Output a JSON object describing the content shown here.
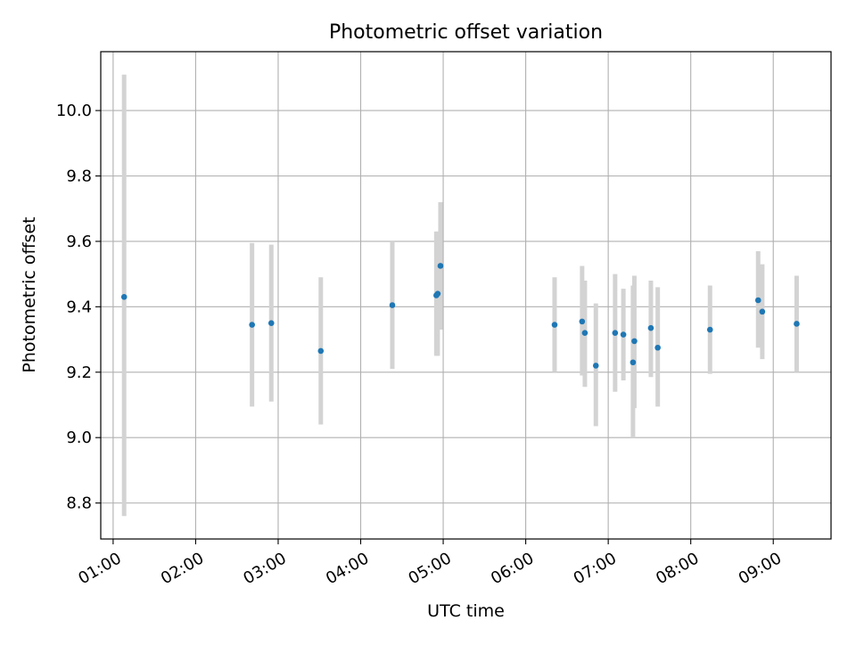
{
  "chart_data": {
    "type": "scatter",
    "title": "Photometric offset variation",
    "xlabel": "UTC time",
    "ylabel": "Photometric offset",
    "x_axis_kind": "time",
    "xlim": [
      "00:51",
      "09:42"
    ],
    "ylim": [
      8.69,
      10.18
    ],
    "x_ticks": [
      "01:00",
      "02:00",
      "03:00",
      "04:00",
      "05:00",
      "06:00",
      "07:00",
      "08:00",
      "09:00"
    ],
    "y_ticks": [
      8.8,
      9.0,
      9.2,
      9.4,
      9.6,
      9.8,
      10.0
    ],
    "grid": true,
    "colors": {
      "point": "#1f77b4",
      "errorbar": "#d3d3d3",
      "grid": "#b0b0b0",
      "axes": "#000000"
    },
    "series": [
      {
        "points": [
          {
            "x": "01:08",
            "y": 9.43,
            "y_low": 8.76,
            "y_high": 10.11
          },
          {
            "x": "02:41",
            "y": 9.345,
            "y_low": 9.095,
            "y_high": 9.595
          },
          {
            "x": "02:55",
            "y": 9.35,
            "y_low": 9.11,
            "y_high": 9.59
          },
          {
            "x": "03:31",
            "y": 9.265,
            "y_low": 9.04,
            "y_high": 9.49
          },
          {
            "x": "04:23",
            "y": 9.405,
            "y_low": 9.21,
            "y_high": 9.6
          },
          {
            "x": "04:55",
            "y": 9.435,
            "y_low": 9.25,
            "y_high": 9.63
          },
          {
            "x": "04:56",
            "y": 9.44,
            "y_low": 9.25,
            "y_high": 9.63
          },
          {
            "x": "04:58",
            "y": 9.525,
            "y_low": 9.33,
            "y_high": 9.72
          },
          {
            "x": "06:21",
            "y": 9.345,
            "y_low": 9.2,
            "y_high": 9.49
          },
          {
            "x": "06:41",
            "y": 9.355,
            "y_low": 9.19,
            "y_high": 9.525
          },
          {
            "x": "06:43",
            "y": 9.32,
            "y_low": 9.155,
            "y_high": 9.48
          },
          {
            "x": "06:51",
            "y": 9.22,
            "y_low": 9.035,
            "y_high": 9.41
          },
          {
            "x": "07:05",
            "y": 9.32,
            "y_low": 9.14,
            "y_high": 9.5
          },
          {
            "x": "07:11",
            "y": 9.315,
            "y_low": 9.175,
            "y_high": 9.455
          },
          {
            "x": "07:18",
            "y": 9.23,
            "y_low": 9.0,
            "y_high": 9.465
          },
          {
            "x": "07:19",
            "y": 9.295,
            "y_low": 9.09,
            "y_high": 9.495
          },
          {
            "x": "07:31",
            "y": 9.335,
            "y_low": 9.185,
            "y_high": 9.48
          },
          {
            "x": "07:36",
            "y": 9.275,
            "y_low": 9.095,
            "y_high": 9.46
          },
          {
            "x": "08:14",
            "y": 9.33,
            "y_low": 9.195,
            "y_high": 9.465
          },
          {
            "x": "08:49",
            "y": 9.42,
            "y_low": 9.275,
            "y_high": 9.57
          },
          {
            "x": "08:52",
            "y": 9.385,
            "y_low": 9.24,
            "y_high": 9.53
          },
          {
            "x": "09:17",
            "y": 9.348,
            "y_low": 9.2,
            "y_high": 9.495
          }
        ]
      }
    ]
  }
}
